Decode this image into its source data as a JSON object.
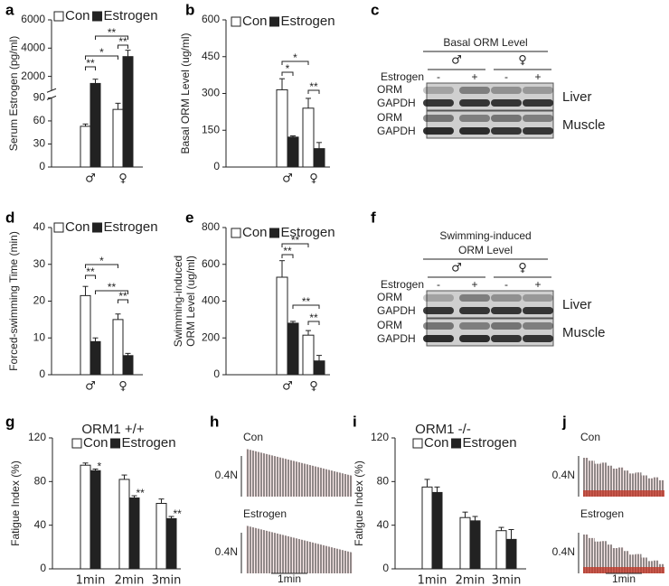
{
  "chart_data": [
    {
      "type": "bar",
      "label": "a",
      "ylabel": "Serum Estrogen (pg/ml)",
      "categories": [
        "♂",
        "♀"
      ],
      "series": [
        {
          "name": "Con",
          "color": "#ffffff",
          "values": [
            53,
            75
          ],
          "errors": [
            3,
            8
          ]
        },
        {
          "name": "Estrogen",
          "color": "#222222",
          "values": [
            1500,
            3400
          ],
          "errors": [
            300,
            450
          ]
        }
      ],
      "ylim": [
        0,
        6000
      ],
      "yticks": [
        0,
        30,
        60,
        90,
        2000,
        4000,
        6000
      ],
      "axis_break": [
        90,
        1000
      ],
      "annotations": [
        "**",
        "*",
        "**",
        "**"
      ]
    },
    {
      "type": "bar",
      "label": "b",
      "ylabel": "Basal ORM Level (ug/ml)",
      "categories": [
        "♂",
        "♀"
      ],
      "series": [
        {
          "name": "Con",
          "color": "#ffffff",
          "values": [
            315,
            240
          ],
          "errors": [
            45,
            40
          ]
        },
        {
          "name": "Estrogen",
          "color": "#222222",
          "values": [
            122,
            75
          ],
          "errors": [
            5,
            25
          ]
        }
      ],
      "ylim": [
        0,
        600
      ],
      "yticks": [
        0,
        150,
        300,
        450,
        600
      ],
      "annotations": [
        "*",
        "*",
        "**"
      ]
    },
    {
      "type": "bar",
      "label": "d",
      "ylabel": "Forced-swimming Time (min)",
      "categories": [
        "♂",
        "♀"
      ],
      "series": [
        {
          "name": "Con",
          "color": "#ffffff",
          "values": [
            21.5,
            15
          ],
          "errors": [
            2.5,
            1.5
          ]
        },
        {
          "name": "Estrogen",
          "color": "#222222",
          "values": [
            9,
            5.2
          ],
          "errors": [
            1,
            0.6
          ]
        }
      ],
      "ylim": [
        0,
        40
      ],
      "yticks": [
        0,
        10,
        20,
        30,
        40
      ],
      "annotations": [
        "*",
        "**",
        "**",
        "**"
      ]
    },
    {
      "type": "bar",
      "label": "e",
      "ylabel": [
        "Swimming-induced",
        "ORM Level (ug/ml)"
      ],
      "categories": [
        "♂",
        "♀"
      ],
      "series": [
        {
          "name": "Con",
          "color": "#ffffff",
          "values": [
            530,
            215
          ],
          "errors": [
            90,
            25
          ]
        },
        {
          "name": "Estrogen",
          "color": "#222222",
          "values": [
            280,
            75
          ],
          "errors": [
            10,
            30
          ]
        }
      ],
      "ylim": [
        0,
        800
      ],
      "yticks": [
        0,
        200,
        400,
        600,
        800
      ],
      "annotations": [
        "**",
        "**",
        "**",
        "**"
      ]
    },
    {
      "type": "bar",
      "label": "g",
      "title": "ORM1 +/+",
      "ylabel": "Fatigue Index (%)",
      "categories": [
        "1min",
        "2min",
        "3min"
      ],
      "series": [
        {
          "name": "Con",
          "color": "#ffffff",
          "values": [
            95,
            82,
            60
          ],
          "errors": [
            2,
            4,
            4
          ]
        },
        {
          "name": "Estrogen",
          "color": "#222222",
          "values": [
            90,
            65,
            46
          ],
          "errors": [
            1.5,
            2,
            2
          ]
        }
      ],
      "ylim": [
        0,
        120
      ],
      "yticks": [
        0,
        40,
        80,
        120
      ],
      "annotations": [
        "*",
        "**",
        "**"
      ]
    },
    {
      "type": "bar",
      "label": "i",
      "title": "ORM1 -/-",
      "ylabel": "Fatigue Index (%)",
      "categories": [
        "1min",
        "2min",
        "3min"
      ],
      "series": [
        {
          "name": "Con",
          "color": "#ffffff",
          "values": [
            75,
            47,
            35
          ],
          "errors": [
            7,
            5,
            3
          ]
        },
        {
          "name": "Estrogen",
          "color": "#222222",
          "values": [
            70,
            44,
            27
          ],
          "errors": [
            5,
            4,
            9
          ]
        }
      ],
      "ylim": [
        0,
        120
      ],
      "yticks": [
        0,
        40,
        80,
        120
      ]
    }
  ],
  "blots": [
    {
      "label": "c",
      "title": [
        "Basal ORM Level"
      ],
      "groups": [
        "♂",
        "♀"
      ],
      "treatment_label": "Estrogen",
      "treatments": [
        "-",
        "+",
        "-",
        "+"
      ],
      "rows": [
        [
          "ORM",
          "GAPDH"
        ],
        [
          "ORM",
          "GAPDH"
        ]
      ],
      "tissues": [
        "Liver",
        "Muscle"
      ]
    },
    {
      "label": "f",
      "title": [
        "Swimming-induced",
        "ORM Level"
      ],
      "groups": [
        "♂",
        "♀"
      ],
      "treatment_label": "Estrogen",
      "treatments": [
        "-",
        "+",
        "-",
        "+"
      ],
      "rows": [
        [
          "ORM",
          "GAPDH"
        ],
        [
          "ORM",
          "GAPDH"
        ]
      ],
      "tissues": [
        "Liver",
        "Muscle"
      ]
    }
  ],
  "traces": [
    {
      "label": "h",
      "rows": [
        {
          "name": "Con",
          "scale": "0.4N"
        },
        {
          "name": "Estrogen",
          "scale": "0.4N"
        }
      ],
      "time_scale": "1min"
    },
    {
      "label": "j",
      "rows": [
        {
          "name": "Con",
          "scale": "0.4N"
        },
        {
          "name": "Estrogen",
          "scale": "0.4N"
        }
      ],
      "time_scale": "1min"
    }
  ]
}
